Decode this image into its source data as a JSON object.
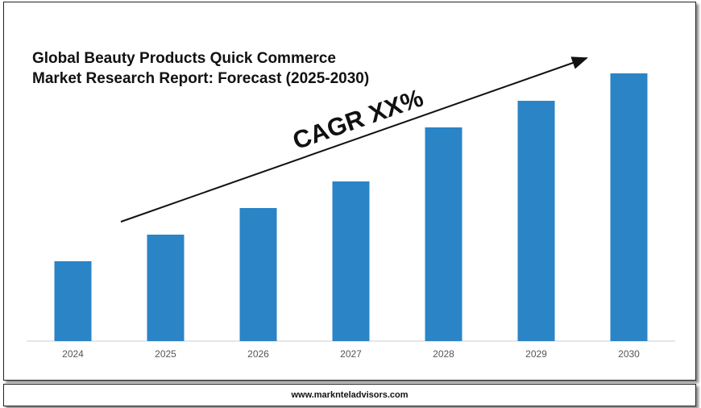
{
  "chart_data": {
    "type": "bar",
    "title": "Global Beauty Products Quick Commerce Market Research Report: Forecast (2025-2030)",
    "annotation": "CAGR XX%",
    "footer": "www.marknteladvisors.com",
    "categories": [
      "2024",
      "2025",
      "2026",
      "2027",
      "2028",
      "2029",
      "2030"
    ],
    "values": [
      99,
      132,
      165,
      198,
      265,
      298,
      332
    ],
    "color": "#2a84c6",
    "ylim": [
      0,
      350
    ]
  }
}
